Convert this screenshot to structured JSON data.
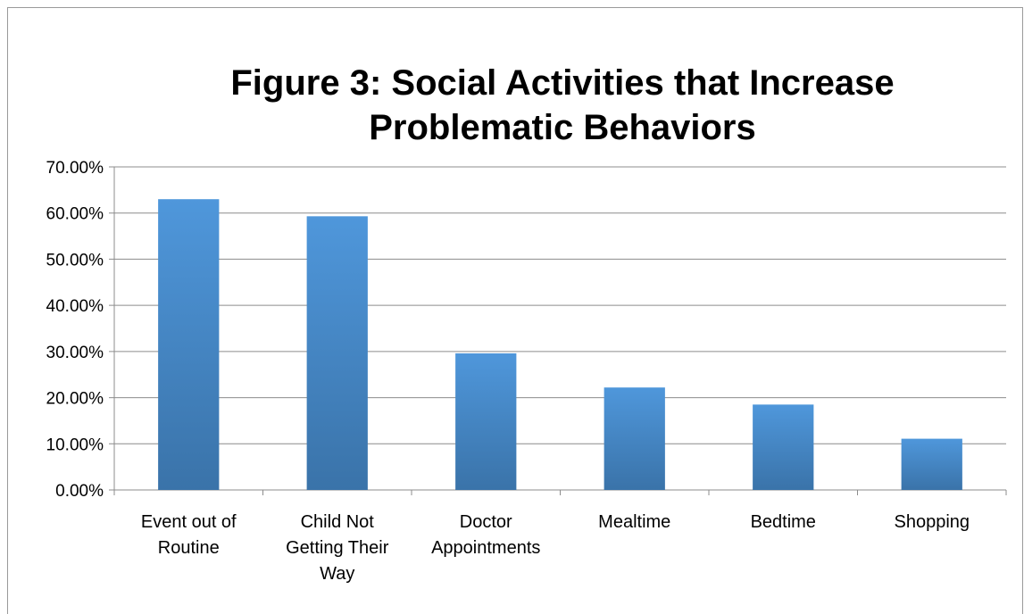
{
  "chart_data": {
    "type": "bar",
    "title": "Figure 3: Social Activities that Increase\nProblematic Behaviors",
    "categories": [
      "Event out of\nRoutine",
      "Child Not\nGetting Their\nWay",
      "Doctor\nAppointments",
      "Mealtime",
      "Bedtime",
      "Shopping"
    ],
    "values": [
      63.0,
      59.3,
      29.6,
      22.2,
      18.5,
      11.1
    ],
    "ylim": [
      0,
      70
    ],
    "yticks": [
      "0.00%",
      "10.00%",
      "20.00%",
      "30.00%",
      "40.00%",
      "50.00%",
      "60.00%",
      "70.00%"
    ],
    "xlabel": "",
    "ylabel": "",
    "grid": true,
    "legend": "none",
    "colors": {
      "bar_light": "#4f97db",
      "bar_dark": "#3a73a9",
      "grid": "#8c8c8c",
      "text": "#000000"
    }
  }
}
